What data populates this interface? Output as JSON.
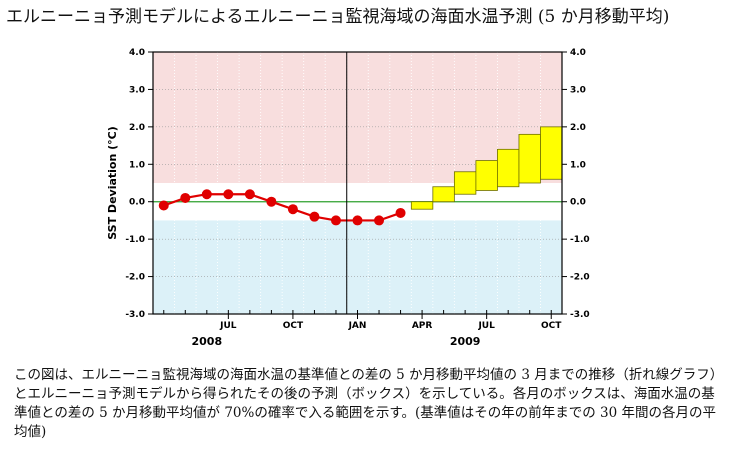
{
  "page": {
    "title": "エルニーニョ予測モデルによるエルニーニョ監視海域の海面水温予測 (5 か月移動平均)",
    "caption": "この図は、エルニーニョ監視海域の海面水温の基準値との差の 5 か月移動平均値の 3 月までの推移（折れ線グラフ）とエルニーニョ予測モデルから得られたその後の予測（ボックス）を示している。各月のボックスは、海面水温の基準値との差の 5 か月移動平均値が 70%の確率で入る範囲を示す。(基準値はその年の前年までの 30 年間の各月の平均値)"
  },
  "chart_data": {
    "type": "line",
    "ylabel": "SST Deviation (°C)",
    "ylim": [
      -3.0,
      4.0
    ],
    "yticks": [
      "-3.0",
      "-2.0",
      "-1.0",
      "0.0",
      "1.0",
      "2.0",
      "3.0",
      "4.0"
    ],
    "xticks": [
      {
        "month": 7,
        "label": "JUL"
      },
      {
        "month": 10,
        "label": "OCT"
      },
      {
        "month": 13,
        "label": "JAN"
      },
      {
        "month": 16,
        "label": "APR"
      },
      {
        "month": 19,
        "label": "JUL"
      },
      {
        "month": 22,
        "label": "OCT"
      }
    ],
    "year_labels": [
      {
        "month": 6,
        "label": "2008"
      },
      {
        "month": 18,
        "label": "2009"
      }
    ],
    "year_boundary_month": 12.5,
    "xlim": [
      3.5,
      22.5
    ],
    "warm_threshold": 0.5,
    "cold_threshold": -0.5,
    "colors": {
      "warm_zone": "#f8dede",
      "cold_zone": "#dcf1f8",
      "zero_line": "#2ea02e",
      "observed": "#e00000",
      "forecast_fill": "#ffff00",
      "forecast_edge": "#6e6e00"
    },
    "series": [
      {
        "name": "observed 5-month running mean",
        "months": [
          4,
          5,
          6,
          7,
          8,
          9,
          10,
          11,
          12,
          13,
          14,
          15
        ],
        "values": [
          -0.1,
          0.1,
          0.2,
          0.2,
          0.2,
          0.0,
          -0.2,
          -0.4,
          -0.5,
          -0.5,
          -0.5,
          -0.3
        ]
      }
    ],
    "forecast_boxes": [
      {
        "month": 16,
        "low": -0.2,
        "high": 0.0
      },
      {
        "month": 17,
        "low": 0.0,
        "high": 0.4
      },
      {
        "month": 18,
        "low": 0.2,
        "high": 0.8
      },
      {
        "month": 19,
        "low": 0.3,
        "high": 1.1
      },
      {
        "month": 20,
        "low": 0.4,
        "high": 1.4
      },
      {
        "month": 21,
        "low": 0.5,
        "high": 1.8
      },
      {
        "month": 22,
        "low": 0.6,
        "high": 2.0
      }
    ]
  }
}
